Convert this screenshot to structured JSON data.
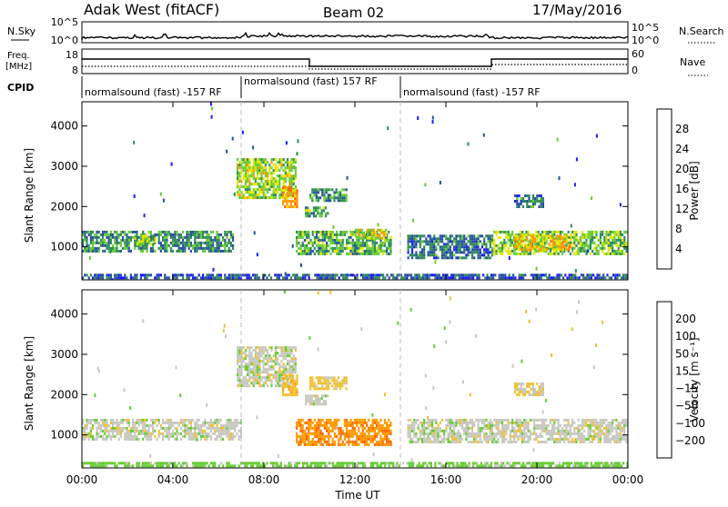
{
  "header": {
    "radar": "Adak West (fitACF)",
    "beam": "Beam 02",
    "date": "17/May/2016"
  },
  "top_panels": {
    "nsky_label": "N.Sky",
    "nsky_ticks": [
      "10^5",
      "10^0"
    ],
    "nsearch_label": "N.Search",
    "nsearch_ticks": [
      "10^5",
      "10^0"
    ],
    "freq_label": "Freq.",
    "freq_unit": "[MHz]",
    "freq_ticks": [
      "18",
      "8"
    ],
    "nave_label": "Nave",
    "nave_ticks": [
      "60",
      "0"
    ],
    "cpid_label": "CPID",
    "cpid_segments": [
      {
        "text": "normalsound (fast) -157 RF",
        "start_h": 0,
        "end_h": 7.0
      },
      {
        "text": "normalsound (fast) 157 RF",
        "start_h": 7.0,
        "end_h": 14.0
      },
      {
        "text": "normalsound (fast) -157 RF",
        "start_h": 14.0,
        "end_h": 24.0
      }
    ]
  },
  "axes": {
    "ylabel": "Slant Range [km]",
    "xlabel": "Time UT",
    "x_ticks": [
      "00:00",
      "04:00",
      "08:00",
      "12:00",
      "16:00",
      "20:00",
      "00:00"
    ],
    "y_ticks": [
      "1000",
      "2000",
      "3000",
      "4000"
    ]
  },
  "colorbars": {
    "power": {
      "label": "Power [dB]",
      "ticks": [
        "4",
        "8",
        "12",
        "16",
        "20",
        "24",
        "28"
      ],
      "colors": [
        "#1a1aff",
        "#2850a0",
        "#2e8b57",
        "#66cc33",
        "#e6e600",
        "#ff9900",
        "#ff6600",
        "#ff0000"
      ]
    },
    "velocity": {
      "label": "Velocity [m s⁻¹]",
      "ticks": [
        "200",
        "100",
        "50",
        "15",
        "−15",
        "−50",
        "−100",
        "−200"
      ],
      "colors": [
        "#1a1acc",
        "#2a5ad0",
        "#2e8b57",
        "#66cc33",
        "#c8c8c0",
        "#f0c030",
        "#ff9900",
        "#ff6600",
        "#ff0000"
      ]
    }
  },
  "chart_data": [
    {
      "type": "heatmap",
      "title": "Power",
      "x_range_hours": [
        0,
        24
      ],
      "y_range_km": [
        180,
        4600
      ],
      "colorbar": "Power [dB]",
      "regions": [
        {
          "t": [
            0.0,
            6.6
          ],
          "r": [
            900,
            1400
          ],
          "value_db": 10
        },
        {
          "t": [
            2.3,
            3.2
          ],
          "r": [
            1050,
            1300
          ],
          "value_db": 14
        },
        {
          "t": [
            6.8,
            9.4
          ],
          "r": [
            2200,
            3200
          ],
          "value_db": 16
        },
        {
          "t": [
            8.8,
            9.5
          ],
          "r": [
            2000,
            2500
          ],
          "value_db": 22
        },
        {
          "t": [
            9.8,
            10.8
          ],
          "r": [
            1750,
            2000
          ],
          "value_db": 12
        },
        {
          "t": [
            10.0,
            11.6
          ],
          "r": [
            2150,
            2450
          ],
          "value_db": 10
        },
        {
          "t": [
            9.4,
            13.6
          ],
          "r": [
            850,
            1400
          ],
          "value_db": 12
        },
        {
          "t": [
            12.0,
            13.4
          ],
          "r": [
            1200,
            1450
          ],
          "value_db": 18
        },
        {
          "t": [
            14.3,
            18.0
          ],
          "r": [
            700,
            1300
          ],
          "value_db": 8
        },
        {
          "t": [
            18.0,
            24.0
          ],
          "r": [
            850,
            1400
          ],
          "value_db": 14
        },
        {
          "t": [
            19.0,
            21.5
          ],
          "r": [
            950,
            1300
          ],
          "value_db": 20
        },
        {
          "t": [
            19.0,
            20.3
          ],
          "r": [
            2000,
            2300
          ],
          "value_db": 8
        },
        {
          "t": [
            0.0,
            24.0
          ],
          "r": [
            200,
            330
          ],
          "value_db": 6
        }
      ]
    },
    {
      "type": "heatmap",
      "title": "Velocity",
      "x_range_hours": [
        0,
        24
      ],
      "y_range_km": [
        180,
        4600
      ],
      "colorbar": "Velocity [m s⁻¹]",
      "regions": [
        {
          "t": [
            0.0,
            7.0
          ],
          "r": [
            900,
            1400
          ],
          "value_ms": 0
        },
        {
          "t": [
            6.8,
            9.4
          ],
          "r": [
            2200,
            3200
          ],
          "value_ms": 0
        },
        {
          "t": [
            8.8,
            9.5
          ],
          "r": [
            2000,
            2500
          ],
          "value_ms": -40
        },
        {
          "t": [
            9.8,
            10.8
          ],
          "r": [
            1750,
            2000
          ],
          "value_ms": 0
        },
        {
          "t": [
            10.0,
            11.6
          ],
          "r": [
            2150,
            2450
          ],
          "value_ms": -30
        },
        {
          "t": [
            9.4,
            13.6
          ],
          "r": [
            750,
            1400
          ],
          "value_ms": -90
        },
        {
          "t": [
            14.3,
            24.0
          ],
          "r": [
            800,
            1400
          ],
          "value_ms": 0
        },
        {
          "t": [
            19.0,
            20.3
          ],
          "r": [
            2000,
            2300
          ],
          "value_ms": -20
        },
        {
          "t": [
            0.0,
            24.0
          ],
          "r": [
            200,
            330
          ],
          "value_ms": 30
        }
      ]
    }
  ]
}
